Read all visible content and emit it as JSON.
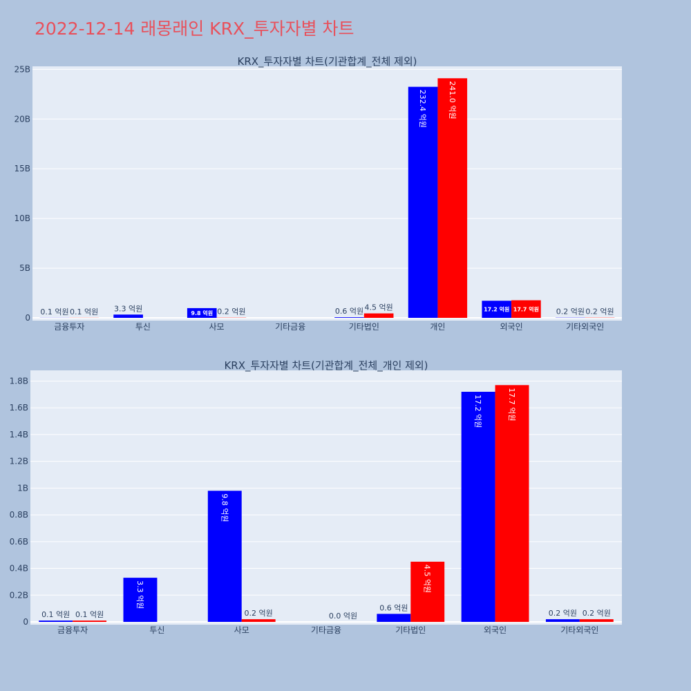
{
  "title": "2022-12-14 래몽래인 KRX_투자자별 차트",
  "colors": {
    "series_a": "#0000ff",
    "series_b": "#ff0000"
  },
  "chart_data": [
    {
      "type": "bar",
      "title": "KRX_투자자별 차트(기관합계_전체 제외)",
      "categories": [
        "금융투자",
        "투신",
        "사모",
        "기타금융",
        "기타법인",
        "개인",
        "외국인",
        "기타외국인"
      ],
      "ylim": [
        0,
        25300000000
      ],
      "yticks": [
        {
          "value": 0,
          "label": "0"
        },
        {
          "value": 5000000000,
          "label": "5B"
        },
        {
          "value": 10000000000,
          "label": "10B"
        },
        {
          "value": 15000000000,
          "label": "15B"
        },
        {
          "value": 20000000000,
          "label": "20B"
        },
        {
          "value": 25000000000,
          "label": "25B"
        }
      ],
      "series": [
        {
          "color": "#0000ff",
          "values": [
            10000000,
            330000000,
            980000000,
            null,
            60000000,
            23240000000,
            1720000000,
            20000000
          ],
          "labels": [
            "0.1 억원",
            "3.3 억원",
            "9.8 억원",
            "",
            "0.6 억원",
            "232.4 억원",
            "17.2 억원",
            "0.2 억원"
          ]
        },
        {
          "color": "#ff0000",
          "values": [
            10000000,
            null,
            20000000,
            null,
            450000000,
            24100000000,
            1770000000,
            20000000
          ],
          "labels": [
            "0.1 억원",
            "",
            "0.2 억원",
            "",
            "4.5 억원",
            "241.0 억원",
            "17.7 억원",
            "0.2 억원"
          ]
        }
      ],
      "grid": true,
      "legend": "none"
    },
    {
      "type": "bar",
      "title": "KRX_투자자별 차트(기관합계_전체_개인 제외)",
      "categories": [
        "금융투자",
        "투신",
        "사모",
        "기타금융",
        "기타법인",
        "외국인",
        "기타외국인"
      ],
      "ylim": [
        0,
        1880000000
      ],
      "yticks": [
        {
          "value": 0,
          "label": "0"
        },
        {
          "value": 200000000,
          "label": "0.2B"
        },
        {
          "value": 400000000,
          "label": "0.4B"
        },
        {
          "value": 600000000,
          "label": "0.6B"
        },
        {
          "value": 800000000,
          "label": "0.8B"
        },
        {
          "value": 1000000000,
          "label": "1B"
        },
        {
          "value": 1200000000,
          "label": "1.2B"
        },
        {
          "value": 1400000000,
          "label": "1.4B"
        },
        {
          "value": 1600000000,
          "label": "1.6B"
        },
        {
          "value": 1800000000,
          "label": "1.8B"
        }
      ],
      "series": [
        {
          "color": "#0000ff",
          "values": [
            10000000,
            330000000,
            980000000,
            null,
            60000000,
            1720000000,
            20000000
          ],
          "labels": [
            "0.1 억원",
            "3.3 억원",
            "9.8 억원",
            "",
            "0.6 억원",
            "17.2 억원",
            "0.2 억원"
          ]
        },
        {
          "color": "#ff0000",
          "values": [
            10000000,
            null,
            20000000,
            0,
            450000000,
            1770000000,
            20000000
          ],
          "labels": [
            "0.1 억원",
            "",
            "0.2 억원",
            "0.0 억원",
            "4.5 억원",
            "17.7 억원",
            "0.2 억원"
          ]
        }
      ],
      "grid": true,
      "legend": "none"
    }
  ]
}
